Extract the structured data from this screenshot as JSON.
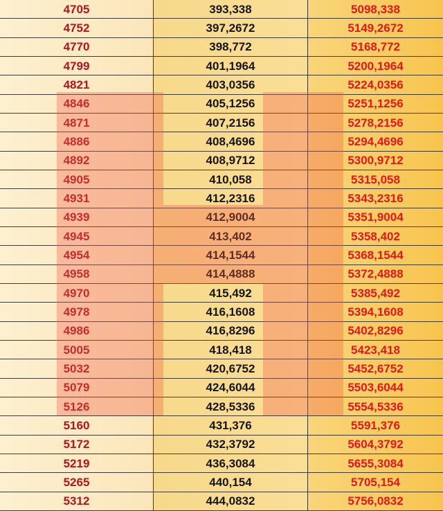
{
  "table": {
    "rows": [
      {
        "a": "4705",
        "b": "393,338",
        "c": "5098,338"
      },
      {
        "a": "4752",
        "b": "397,2672",
        "c": "5149,2672"
      },
      {
        "a": "4770",
        "b": "398,772",
        "c": "5168,772"
      },
      {
        "a": "4799",
        "b": "401,1964",
        "c": "5200,1964"
      },
      {
        "a": "4821",
        "b": "403,0356",
        "c": "5224,0356"
      },
      {
        "a": "4846",
        "b": "405,1256",
        "c": "5251,1256"
      },
      {
        "a": "4871",
        "b": "407,2156",
        "c": "5278,2156"
      },
      {
        "a": "4886",
        "b": "408,4696",
        "c": "5294,4696"
      },
      {
        "a": "4892",
        "b": "408,9712",
        "c": "5300,9712"
      },
      {
        "a": "4905",
        "b": "410,058",
        "c": "5315,058"
      },
      {
        "a": "4931",
        "b": "412,2316",
        "c": "5343,2316"
      },
      {
        "a": "4939",
        "b": "412,9004",
        "c": "5351,9004"
      },
      {
        "a": "4945",
        "b": "413,402",
        "c": "5358,402"
      },
      {
        "a": "4954",
        "b": "414,1544",
        "c": "5368,1544"
      },
      {
        "a": "4958",
        "b": "414,4888",
        "c": "5372,4888"
      },
      {
        "a": "4970",
        "b": "415,492",
        "c": "5385,492"
      },
      {
        "a": "4978",
        "b": "416,1608",
        "c": "5394,1608"
      },
      {
        "a": "4986",
        "b": "416,8296",
        "c": "5402,8296"
      },
      {
        "a": "5005",
        "b": "418,418",
        "c": "5423,418"
      },
      {
        "a": "5032",
        "b": "420,6752",
        "c": "5452,6752"
      },
      {
        "a": "5079",
        "b": "424,6044",
        "c": "5503,6044"
      },
      {
        "a": "5126",
        "b": "428,5336",
        "c": "5554,5336"
      },
      {
        "a": "5160",
        "b": "431,376",
        "c": "5591,376"
      },
      {
        "a": "5172",
        "b": "432,3792",
        "c": "5604,3792"
      },
      {
        "a": "5219",
        "b": "436,3084",
        "c": "5655,3084"
      },
      {
        "a": "5265",
        "b": "440,154",
        "c": "5705,154"
      },
      {
        "a": "5312",
        "b": "444,0832",
        "c": "5756,0832"
      }
    ]
  },
  "colors": {
    "column1_text": "#b31320",
    "column2_text": "#151515",
    "column3_text": "#e3171c",
    "watermark": "#f05a46"
  },
  "watermark": {
    "icon": "letter-h-watermark"
  }
}
